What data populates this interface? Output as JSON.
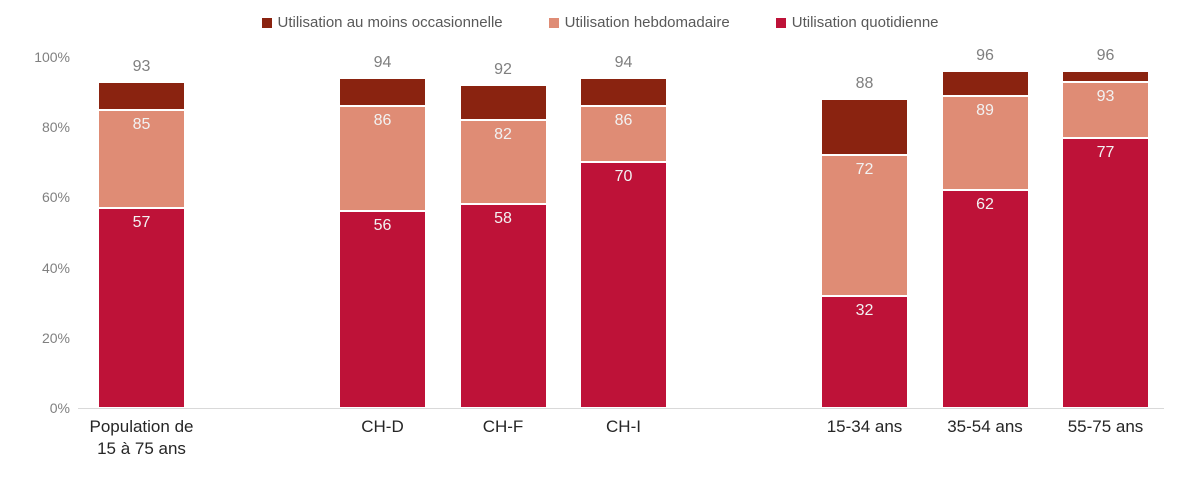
{
  "chart_data": {
    "type": "bar",
    "stacked": true,
    "values_are_cumulative": true,
    "title": "",
    "legend_position": "top",
    "legend": [
      {
        "label": "Utilisation au moins occasionnelle",
        "color": "#8a2310"
      },
      {
        "label": "Utilisation hebdomadaire",
        "color": "#df8c75"
      },
      {
        "label": "Utilisation quotidienne",
        "color": "#be1238"
      }
    ],
    "categories": [
      "Population de\n15 à 75 ans",
      "CH-D",
      "CH-F",
      "CH-I",
      "15-34 ans",
      "35-54 ans",
      "55-75 ans"
    ],
    "groups": [
      [
        0
      ],
      [
        1,
        2,
        3
      ],
      [
        4,
        5,
        6
      ]
    ],
    "series": [
      {
        "name": "Utilisation quotidienne",
        "color": "#be1238",
        "cumulative_values": [
          57,
          56,
          58,
          70,
          32,
          62,
          77
        ],
        "labels_shown": true
      },
      {
        "name": "Utilisation hebdomadaire",
        "color": "#df8c75",
        "cumulative_values": [
          85,
          86,
          82,
          86,
          72,
          89,
          93
        ],
        "labels_shown": true
      },
      {
        "name": "Utilisation au moins occasionnelle",
        "color": "#8a2310",
        "cumulative_values": [
          93,
          94,
          92,
          94,
          88,
          96,
          96
        ],
        "labels_shown": false
      }
    ],
    "total_labels": [
      93,
      94,
      92,
      94,
      88,
      96,
      96
    ],
    "y_axis": {
      "ticks": [
        "0%",
        "20%",
        "40%",
        "60%",
        "80%",
        "100%"
      ],
      "min": 0,
      "max": 100,
      "gridlines": false
    },
    "text_colors": {
      "axis_ticks": "#808080",
      "category_labels": "#262626",
      "total_labels": "#7f7f7f",
      "segment_labels": "#f2f2f2",
      "legend_labels": "#595959"
    }
  }
}
